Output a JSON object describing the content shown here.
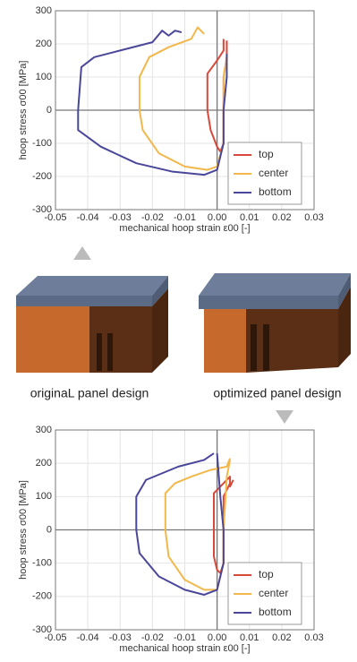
{
  "chart_data": [
    {
      "type": "line",
      "ylabel": "hoop stress σ00 [MPa]",
      "xlabel": "mechanical hoop strain ε00 [-]",
      "xlim": [
        -0.05,
        0.03
      ],
      "ylim": [
        -300,
        300
      ],
      "xticks": [
        -0.05,
        -0.04,
        -0.03,
        -0.02,
        -0.01,
        {
          "value": 0,
          "label": "0.00"
        },
        0.01,
        0.02,
        0.03
      ],
      "yticks": [
        -300,
        -200,
        -100,
        0,
        100,
        200,
        300
      ],
      "grid": true,
      "legend": "lower right",
      "series": [
        {
          "name": "top",
          "color": "#d9483b",
          "x": [
            0.002,
            0.002,
            0.0,
            -0.003,
            -0.003,
            -0.002,
            0.0,
            0.001,
            0.002,
            0.002,
            0.002,
            0.003,
            0.003
          ],
          "values": [
            215,
            180,
            150,
            110,
            0,
            -60,
            -110,
            -125,
            -100,
            0,
            100,
            160,
            210
          ]
        },
        {
          "name": "center",
          "color": "#f2b84b",
          "x": [
            -0.004,
            -0.006,
            -0.008,
            -0.015,
            -0.021,
            -0.024,
            -0.024,
            -0.023,
            -0.018,
            -0.01,
            -0.003,
            0.0,
            0.002,
            0.002,
            0.002,
            0.003
          ],
          "values": [
            230,
            250,
            215,
            190,
            160,
            100,
            0,
            -60,
            -130,
            -170,
            -180,
            -170,
            -100,
            0,
            100,
            160
          ]
        },
        {
          "name": "bottom",
          "color": "#4a479a",
          "x": [
            -0.011,
            -0.013,
            -0.015,
            -0.017,
            -0.02,
            -0.03,
            -0.038,
            -0.042,
            -0.043,
            -0.043,
            -0.036,
            -0.025,
            -0.014,
            -0.004,
            0.0,
            0.002,
            0.002,
            0.003,
            0.003
          ],
          "values": [
            235,
            240,
            225,
            240,
            205,
            180,
            160,
            130,
            0,
            -60,
            -110,
            -160,
            -185,
            -195,
            -180,
            -100,
            0,
            100,
            170
          ]
        }
      ]
    },
    {
      "type": "line",
      "ylabel": "hoop stress σ00 [MPa]",
      "xlabel": "mechanical hoop strain ε00 [-]",
      "xlim": [
        -0.05,
        0.03
      ],
      "ylim": [
        -300,
        300
      ],
      "xticks": [
        -0.05,
        -0.04,
        -0.03,
        -0.02,
        -0.01,
        {
          "value": 0,
          "label": "0.00"
        },
        0.01,
        0.02,
        0.03
      ],
      "yticks": [
        -300,
        -200,
        -100,
        0,
        100,
        200,
        300
      ],
      "grid": true,
      "legend": "lower right",
      "series": [
        {
          "name": "top",
          "color": "#d9483b",
          "x": [
            0.005,
            0.004,
            0.004,
            0.0,
            -0.001,
            -0.001,
            -0.001,
            0.0,
            0.001,
            0.002,
            0.002,
            0.002,
            0.004
          ],
          "values": [
            150,
            130,
            160,
            120,
            110,
            0,
            -80,
            -120,
            -130,
            -100,
            0,
            100,
            140
          ]
        },
        {
          "name": "center",
          "color": "#f2b84b",
          "x": [
            0.004,
            0.003,
            -0.002,
            -0.008,
            -0.013,
            -0.016,
            -0.016,
            -0.015,
            -0.01,
            -0.004,
            0.0,
            0.002,
            0.002,
            0.003,
            0.004
          ],
          "values": [
            215,
            190,
            180,
            160,
            140,
            110,
            0,
            -80,
            -150,
            -180,
            -180,
            -100,
            0,
            160,
            210
          ]
        },
        {
          "name": "bottom",
          "color": "#4a479a",
          "x": [
            -0.001,
            -0.004,
            -0.012,
            -0.022,
            -0.025,
            -0.025,
            -0.024,
            -0.018,
            -0.01,
            -0.004,
            0.0,
            0.002,
            0.002,
            0.001,
            0.0
          ],
          "values": [
            230,
            210,
            190,
            150,
            100,
            0,
            -70,
            -140,
            -180,
            -195,
            -180,
            -100,
            0,
            100,
            230
          ]
        }
      ]
    }
  ],
  "captions": [
    "originaL panel design",
    "optimized panel design"
  ]
}
